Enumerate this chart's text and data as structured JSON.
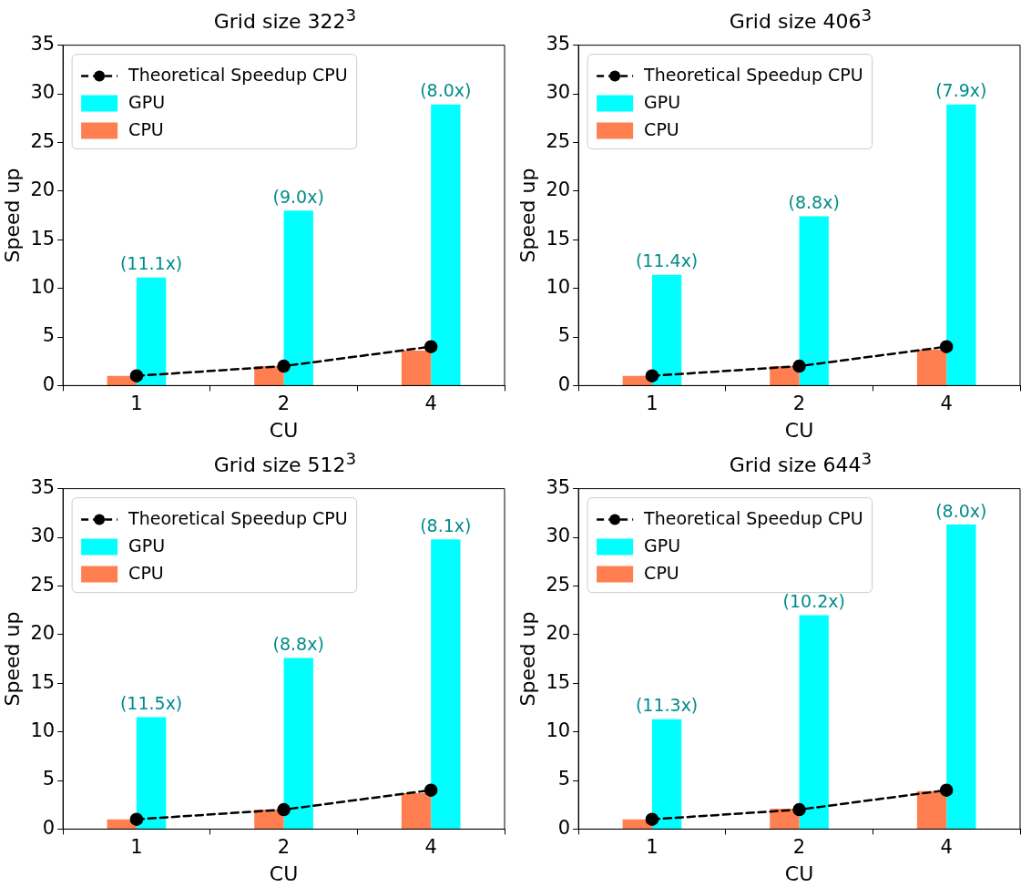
{
  "chart_data": [
    {
      "type": "bar",
      "title": "Grid size 322$^{3}$",
      "xlabel": "CU",
      "ylabel": "Speed up",
      "categories": [
        "1",
        "2",
        "4"
      ],
      "ylim": [
        0,
        35
      ],
      "yticks": [
        0,
        5,
        10,
        15,
        20,
        25,
        30,
        35
      ],
      "legend": "top left",
      "series": [
        {
          "name": "Theoretical Speedup CPU",
          "type": "line",
          "color": "#000000",
          "values": [
            1,
            2,
            4
          ],
          "marker": "circle",
          "line_style": "dashed"
        },
        {
          "name": "GPU",
          "color": "#00ffff",
          "values": [
            11.1,
            18.0,
            28.9
          ]
        },
        {
          "name": "CPU",
          "color": "#ff7f50",
          "values": [
            1.0,
            2.0,
            3.6
          ]
        }
      ],
      "annotations": [
        {
          "text": "(11.1x)",
          "x": "1",
          "y": 11.1
        },
        {
          "text": "(9.0x)",
          "x": "2",
          "y": 18.0
        },
        {
          "text": "(8.0x)",
          "x": "4",
          "y": 28.9
        }
      ]
    },
    {
      "type": "bar",
      "title": "Grid size 406$^{3}$",
      "xlabel": "CU",
      "ylabel": "Speed up",
      "categories": [
        "1",
        "2",
        "4"
      ],
      "ylim": [
        0,
        35
      ],
      "yticks": [
        0,
        5,
        10,
        15,
        20,
        25,
        30,
        35
      ],
      "legend": "top left",
      "series": [
        {
          "name": "Theoretical Speedup CPU",
          "type": "line",
          "color": "#000000",
          "values": [
            1,
            2,
            4
          ],
          "marker": "circle",
          "line_style": "dashed"
        },
        {
          "name": "GPU",
          "color": "#00ffff",
          "values": [
            11.4,
            17.4,
            28.9
          ]
        },
        {
          "name": "CPU",
          "color": "#ff7f50",
          "values": [
            1.0,
            2.0,
            3.7
          ]
        }
      ],
      "annotations": [
        {
          "text": "(11.4x)",
          "x": "1",
          "y": 11.4
        },
        {
          "text": "(8.8x)",
          "x": "2",
          "y": 17.4
        },
        {
          "text": "(7.9x)",
          "x": "4",
          "y": 28.9
        }
      ]
    },
    {
      "type": "bar",
      "title": "Grid size 512$^{3}$",
      "xlabel": "CU",
      "ylabel": "Speed up",
      "categories": [
        "1",
        "2",
        "4"
      ],
      "ylim": [
        0,
        35
      ],
      "yticks": [
        0,
        5,
        10,
        15,
        20,
        25,
        30,
        35
      ],
      "legend": "top left",
      "series": [
        {
          "name": "Theoretical Speedup CPU",
          "type": "line",
          "color": "#000000",
          "values": [
            1,
            2,
            4
          ],
          "marker": "circle",
          "line_style": "dashed"
        },
        {
          "name": "GPU",
          "color": "#00ffff",
          "values": [
            11.5,
            17.6,
            29.8
          ]
        },
        {
          "name": "CPU",
          "color": "#ff7f50",
          "values": [
            1.0,
            2.0,
            3.7
          ]
        }
      ],
      "annotations": [
        {
          "text": "(11.5x)",
          "x": "1",
          "y": 11.5
        },
        {
          "text": "(8.8x)",
          "x": "2",
          "y": 17.6
        },
        {
          "text": "(8.1x)",
          "x": "4",
          "y": 29.8
        }
      ]
    },
    {
      "type": "bar",
      "title": "Grid size 644$^{3}$",
      "xlabel": "CU",
      "ylabel": "Speed up",
      "categories": [
        "1",
        "2",
        "4"
      ],
      "ylim": [
        0,
        35
      ],
      "yticks": [
        0,
        5,
        10,
        15,
        20,
        25,
        30,
        35
      ],
      "legend": "top left",
      "series": [
        {
          "name": "Theoretical Speedup CPU",
          "type": "line",
          "color": "#000000",
          "values": [
            1,
            2,
            4
          ],
          "marker": "circle",
          "line_style": "dashed"
        },
        {
          "name": "GPU",
          "color": "#00ffff",
          "values": [
            11.3,
            22.0,
            31.3
          ]
        },
        {
          "name": "CPU",
          "color": "#ff7f50",
          "values": [
            1.0,
            2.1,
            3.9
          ]
        }
      ],
      "annotations": [
        {
          "text": "(11.3x)",
          "x": "1",
          "y": 11.3
        },
        {
          "text": "(10.2x)",
          "x": "2",
          "y": 22.0
        },
        {
          "text": "(8.0x)",
          "x": "4",
          "y": 31.3
        }
      ]
    }
  ]
}
